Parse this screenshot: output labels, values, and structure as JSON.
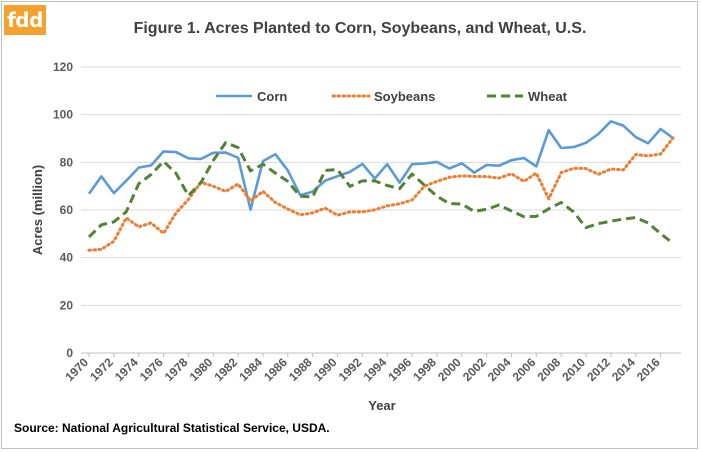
{
  "logo": "fdd",
  "source": "Source: National Agricultural Statistical Service, USDA.",
  "chart_data": {
    "type": "line",
    "title": "Figure 1. Acres Planted to Corn, Soybeans, and Wheat, U.S.",
    "xlabel": "Year",
    "ylabel": "Acres (million)",
    "ylim": [
      0,
      120
    ],
    "yticks": [
      0,
      20,
      40,
      60,
      80,
      100,
      120
    ],
    "x": [
      1970,
      1971,
      1972,
      1973,
      1974,
      1975,
      1976,
      1977,
      1978,
      1979,
      1980,
      1981,
      1982,
      1983,
      1984,
      1985,
      1986,
      1987,
      1988,
      1989,
      1990,
      1991,
      1992,
      1993,
      1994,
      1995,
      1996,
      1997,
      1998,
      1999,
      2000,
      2001,
      2002,
      2003,
      2004,
      2005,
      2006,
      2007,
      2008,
      2009,
      2010,
      2011,
      2012,
      2013,
      2014,
      2015,
      2016,
      2017
    ],
    "xtick_labels": [
      "1970",
      "1972",
      "1974",
      "1976",
      "1978",
      "1980",
      "1982",
      "1984",
      "1986",
      "1988",
      "1990",
      "1992",
      "1994",
      "1996",
      "1998",
      "2000",
      "2002",
      "2004",
      "2006",
      "2008",
      "2010",
      "2012",
      "2014",
      "2016"
    ],
    "grid": "horizontal",
    "legend": "top",
    "series": [
      {
        "name": "Corn",
        "color": "#5b9bd5",
        "style": "solid",
        "values": [
          66.8,
          74.1,
          67.1,
          72.3,
          77.8,
          78.7,
          84.6,
          84.3,
          81.7,
          81.4,
          84.0,
          84.1,
          81.9,
          60.2,
          80.5,
          83.4,
          76.6,
          66.2,
          67.7,
          72.3,
          74.2,
          76.0,
          79.3,
          73.2,
          79.2,
          71.5,
          79.2,
          79.5,
          80.2,
          77.4,
          79.6,
          75.7,
          78.9,
          78.6,
          80.9,
          81.8,
          78.3,
          93.5,
          86.0,
          86.4,
          88.2,
          91.9,
          97.2,
          95.4,
          90.6,
          88.0,
          94.0,
          90.2
        ]
      },
      {
        "name": "Soybeans",
        "color": "#ed7d31",
        "style": "dotted",
        "values": [
          43.1,
          43.5,
          46.9,
          56.7,
          52.9,
          54.6,
          50.2,
          58.8,
          64.4,
          71.6,
          70.0,
          67.8,
          70.9,
          63.8,
          67.8,
          63.1,
          60.4,
          58.0,
          58.8,
          60.8,
          57.8,
          59.2,
          59.2,
          60.1,
          61.7,
          62.6,
          64.2,
          70.0,
          72.0,
          73.7,
          74.3,
          74.1,
          74.0,
          73.4,
          75.2,
          72.0,
          75.5,
          64.7,
          75.7,
          77.5,
          77.4,
          75.0,
          77.2,
          76.8,
          83.3,
          82.7,
          83.5,
          90.2
        ]
      },
      {
        "name": "Wheat",
        "color": "#548235",
        "style": "dashed",
        "values": [
          48.7,
          53.8,
          55.0,
          59.3,
          71.0,
          74.9,
          80.4,
          75.4,
          66.0,
          71.4,
          80.8,
          88.3,
          86.2,
          76.4,
          79.2,
          75.5,
          72.0,
          65.8,
          65.5,
          76.6,
          77.0,
          69.9,
          72.2,
          72.2,
          70.3,
          69.0,
          75.1,
          70.4,
          65.8,
          62.7,
          62.5,
          59.4,
          60.3,
          62.1,
          59.6,
          57.2,
          57.3,
          60.5,
          63.2,
          59.2,
          52.6,
          54.3,
          55.3,
          56.2,
          56.8,
          54.6,
          50.1,
          46.0
        ]
      }
    ]
  }
}
